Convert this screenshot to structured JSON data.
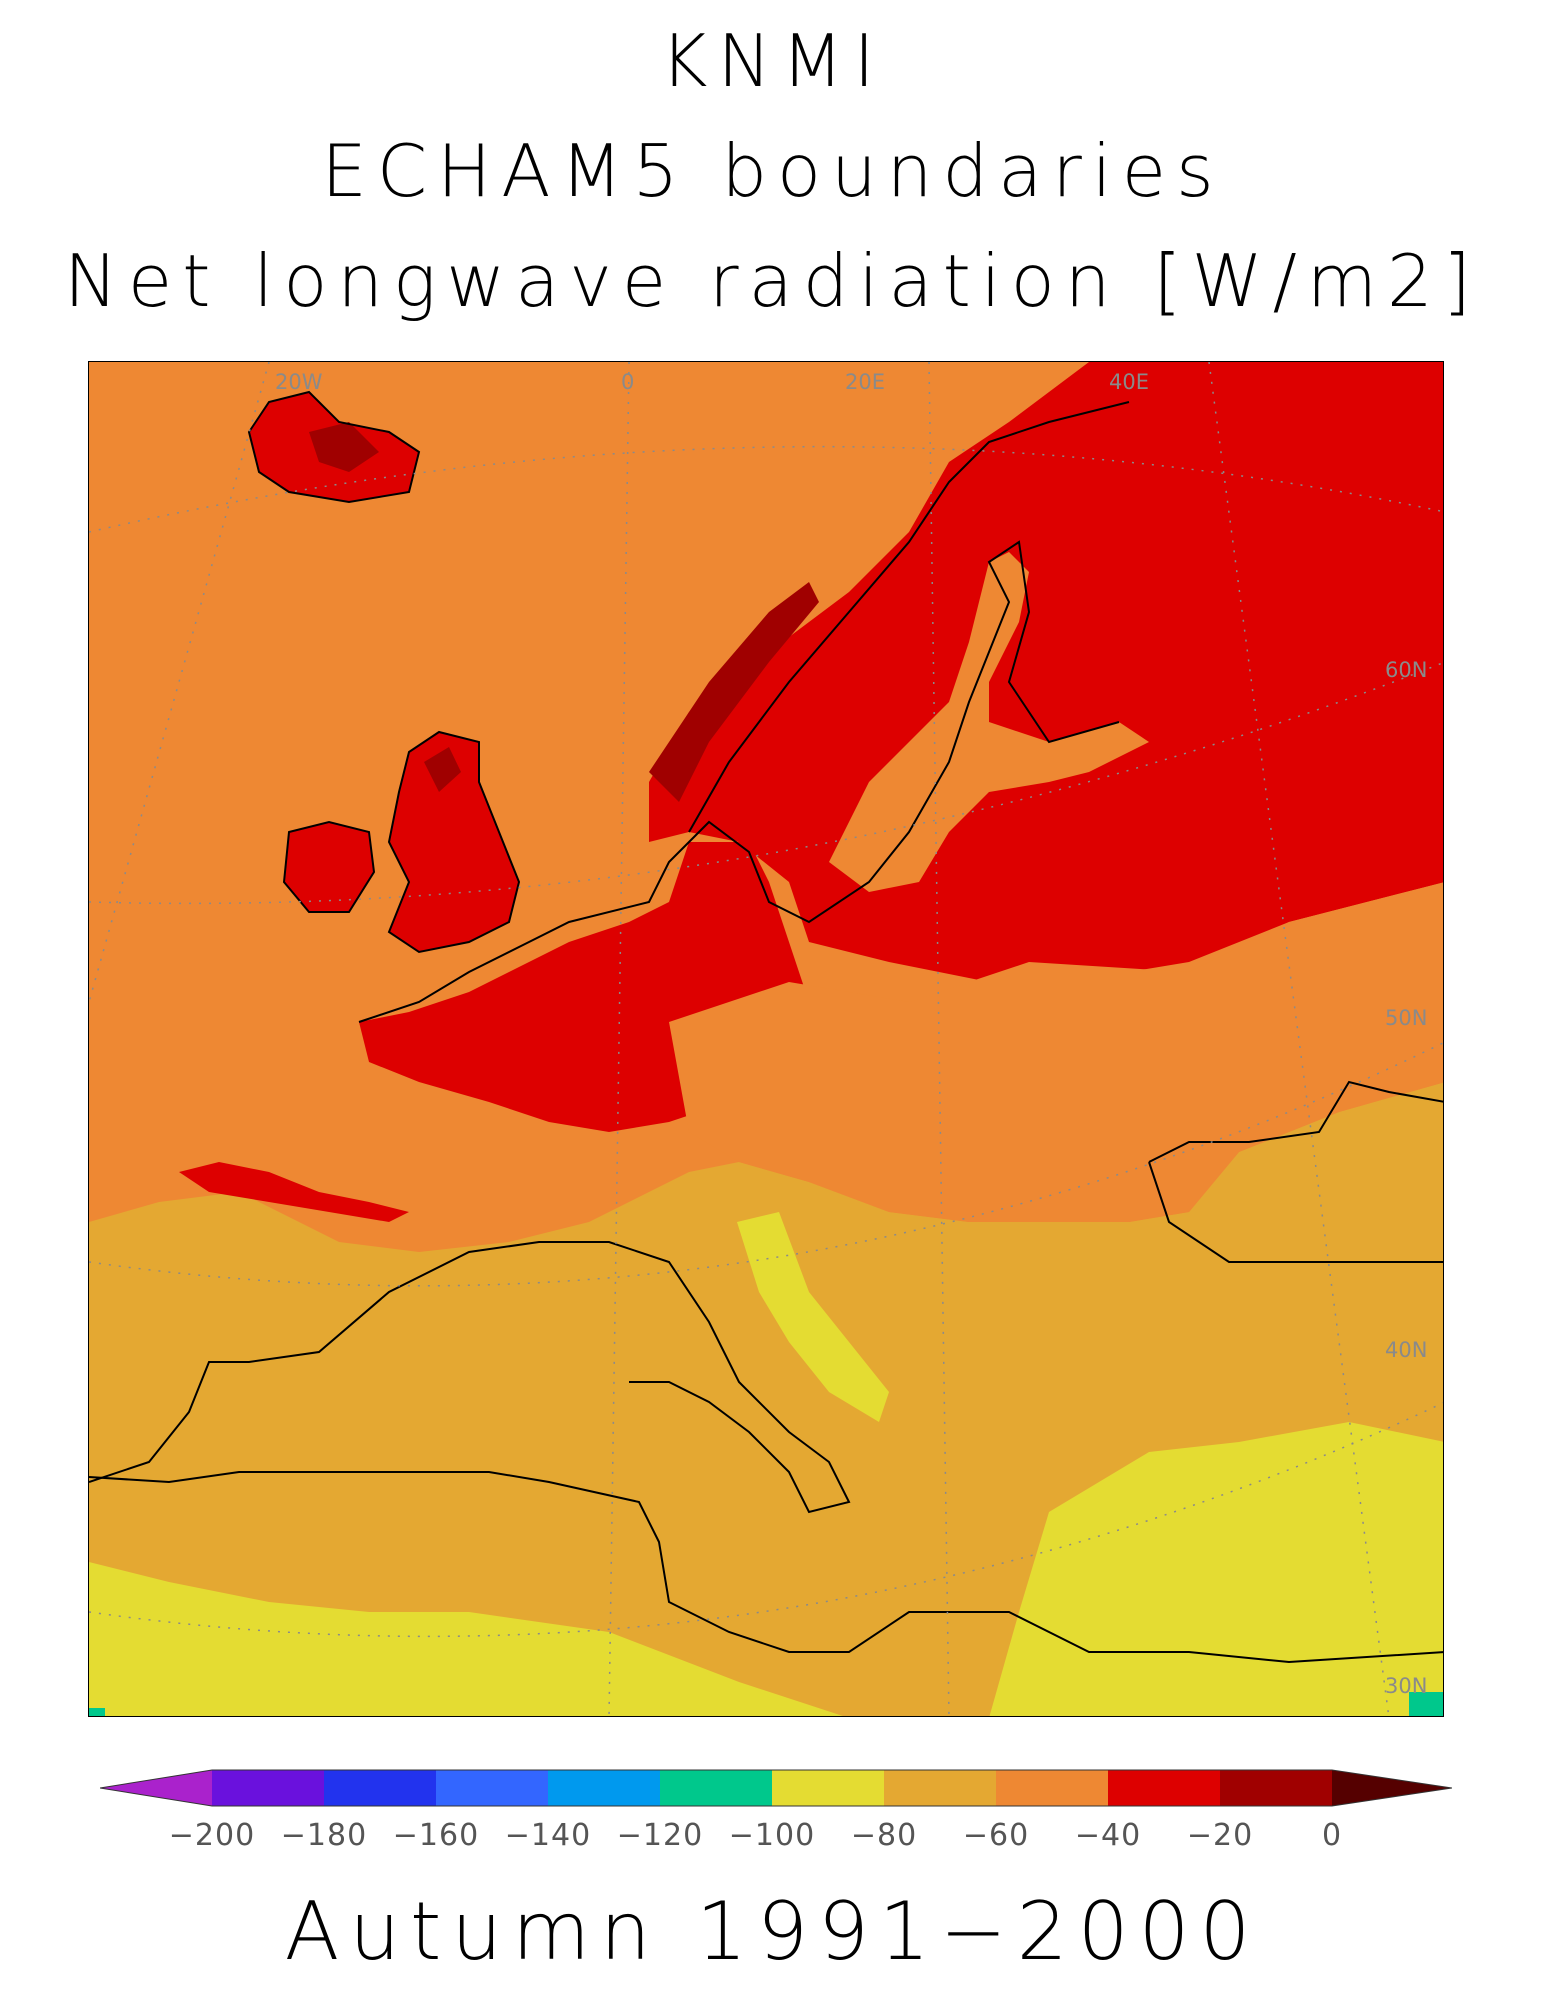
{
  "header": {
    "line1": "KNMI",
    "line2": "ECHAM5 boundaries",
    "line3": "Net longwave radiation [W/m2]"
  },
  "map": {
    "region": "Europe",
    "grid_labels": {
      "lon_20w": "20W",
      "lon_0": "0",
      "lon_20e": "20E",
      "lon_40e": "40E",
      "lat_60n": "60N",
      "lat_50n": "50N",
      "lat_40n": "40N",
      "lat_30n": "30N"
    },
    "colors": {
      "ocean_north": "#ee8833",
      "land_warm": "#dd0000",
      "land_peak": "#a00000",
      "band_mid": "#e4a832",
      "band_south": "#e4dc32",
      "teal": "#00c88c"
    }
  },
  "colorbar": {
    "ticks": [
      "−200",
      "−180",
      "−160",
      "−140",
      "−120",
      "−100",
      "−80",
      "−60",
      "−40",
      "−20",
      "0"
    ],
    "colors": [
      "#aa22cc",
      "#6a11dd",
      "#2233ee",
      "#3366ff",
      "#0099ee",
      "#00c88c",
      "#e4dc32",
      "#e4a832",
      "#ee8833",
      "#dd0000",
      "#a00000",
      "#550000"
    ]
  },
  "footer": {
    "label": "Autumn 1991−2000"
  }
}
